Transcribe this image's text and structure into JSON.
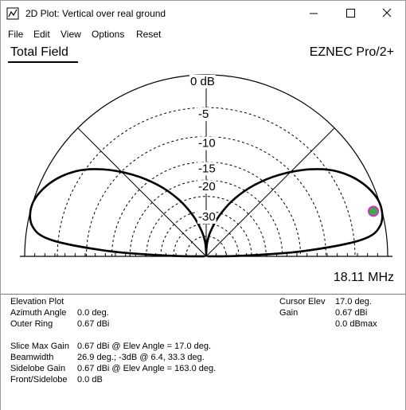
{
  "window": {
    "title": "2D Plot: Vertical over real ground",
    "icon": "eznec-app-icon",
    "minimize_icon": "minimize-icon",
    "maximize_icon": "maximize-icon",
    "close_icon": "close-icon"
  },
  "menu": {
    "items": [
      "File",
      "Edit",
      "View",
      "Options",
      "Reset"
    ]
  },
  "plot": {
    "heading": "Total Field",
    "brand": "EZNEC Pro/2+",
    "frequency": "18.11 MHz",
    "ring_labels": [
      "0 dB",
      "-5",
      "-10",
      "-15",
      "-20",
      "-30"
    ],
    "cursor_color": "#44aa44",
    "cursor_edge_color": "#cc33cc",
    "pattern_color": "#000000"
  },
  "info": {
    "plot_type": "Elevation Plot",
    "azimuth_angle_label": "Azimuth Angle",
    "azimuth_angle_value": "0.0 deg.",
    "outer_ring_label": "Outer Ring",
    "outer_ring_value": "0.67 dBi",
    "cursor_elev_label": "Cursor Elev",
    "cursor_elev_value": "17.0 deg.",
    "gain_label": "Gain",
    "gain_value": "0.67 dBi",
    "gain_dbmax": "0.0 dBmax",
    "slice_max_gain_label": "Slice Max Gain",
    "slice_max_gain_value": "0.67 dBi @ Elev Angle = 17.0 deg.",
    "beamwidth_label": "Beamwidth",
    "beamwidth_value": "26.9 deg.; -3dB @ 6.4, 33.3 deg.",
    "sidelobe_gain_label": "Sidelobe Gain",
    "sidelobe_gain_value": "0.67 dBi @ Elev Angle = 163.0 deg.",
    "front_sidelobe_label": "Front/Sidelobe",
    "front_sidelobe_value": "0.0 dB"
  }
}
